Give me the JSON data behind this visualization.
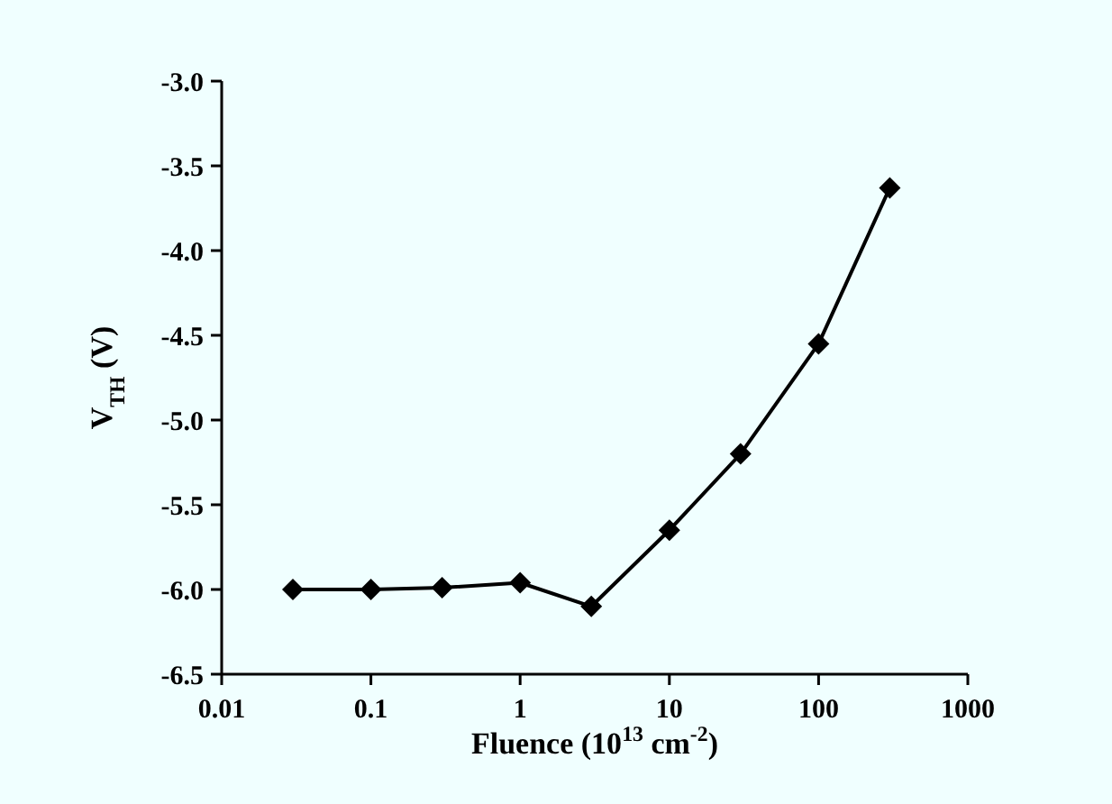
{
  "chart_data": {
    "type": "line",
    "xlabel": "Fluence (10$^{13}$ cm$^{-2}$)",
    "ylabel": "V$_{TH}$ (V)",
    "log": "x",
    "x": [
      0.03,
      0.1,
      0.3,
      1,
      3,
      10,
      30,
      100,
      300
    ],
    "series": [
      {
        "color": "#000000",
        "values": [
          -6.0,
          -6.0,
          -5.99,
          -5.96,
          -6.1,
          -5.65,
          -5.2,
          -4.55,
          -3.63
        ]
      }
    ],
    "xlim": [
      0.01,
      1000
    ],
    "xticks": [
      0.01,
      0.1,
      1,
      10,
      100,
      1000
    ],
    "ylim": [
      -6.5,
      -3.0
    ],
    "yticks": [
      {
        "value": -6.5,
        "label": "-6.5"
      },
      {
        "value": -6.0,
        "label": "-6.0"
      },
      {
        "value": -5.5,
        "label": "-5.5"
      },
      {
        "value": -5.0,
        "label": "-5.0"
      },
      {
        "value": -4.5,
        "label": "-4.5"
      },
      {
        "value": -4.0,
        "label": "-4.0"
      },
      {
        "value": -3.5,
        "label": "-3.5"
      },
      {
        "value": -3.0,
        "label": "-3.0"
      }
    ],
    "grid": false,
    "marker": "diamond",
    "line_style": "solid"
  }
}
